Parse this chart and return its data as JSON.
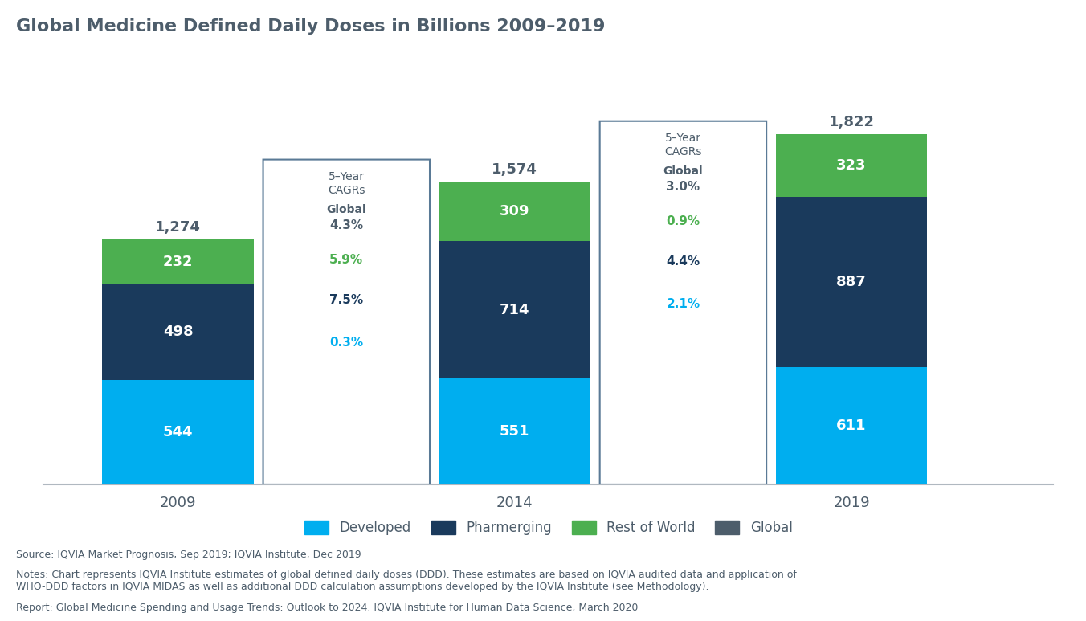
{
  "title": "Global Medicine Defined Daily Doses in Billions 2009–2019",
  "years": [
    "2009",
    "2014",
    "2019"
  ],
  "developed": [
    544,
    551,
    611
  ],
  "pharmerging": [
    498,
    714,
    887
  ],
  "rest_of_world": [
    232,
    309,
    323
  ],
  "totals": [
    1274,
    1574,
    1822
  ],
  "color_developed": "#00AEEF",
  "color_pharmerging": "#1a3a5c",
  "color_rest_of_world": "#4CAF50",
  "color_global_legend": "#4d5d6b",
  "cagr_box1": {
    "global_pct": "4.3%",
    "developed_pct": "0.3%",
    "pharmerging_pct": "7.5%",
    "row_pct": "5.9%"
  },
  "cagr_box2": {
    "global_pct": "3.0%",
    "developed_pct": "2.1%",
    "pharmerging_pct": "4.4%",
    "row_pct": "0.9%"
  },
  "source_text": "Source: IQVIA Market Prognosis, Sep 2019; IQVIA Institute, Dec 2019",
  "notes_text": "Notes: Chart represents IQVIA Institute estimates of global defined daily doses (DDD). These estimates are based on IQVIA audited data and application of\nWHO-DDD factors in IQVIA MIDAS as well as additional DDD calculation assumptions developed by the IQVIA Institute (see Methodology).",
  "report_text": "Report: Global Medicine Spending and Usage Trends: Outlook to 2024. IQVIA Institute for Human Data Science, March 2020",
  "legend_items": [
    "Developed",
    "Pharmerging",
    "Rest of World",
    "Global"
  ],
  "ylim": [
    0,
    2100
  ]
}
